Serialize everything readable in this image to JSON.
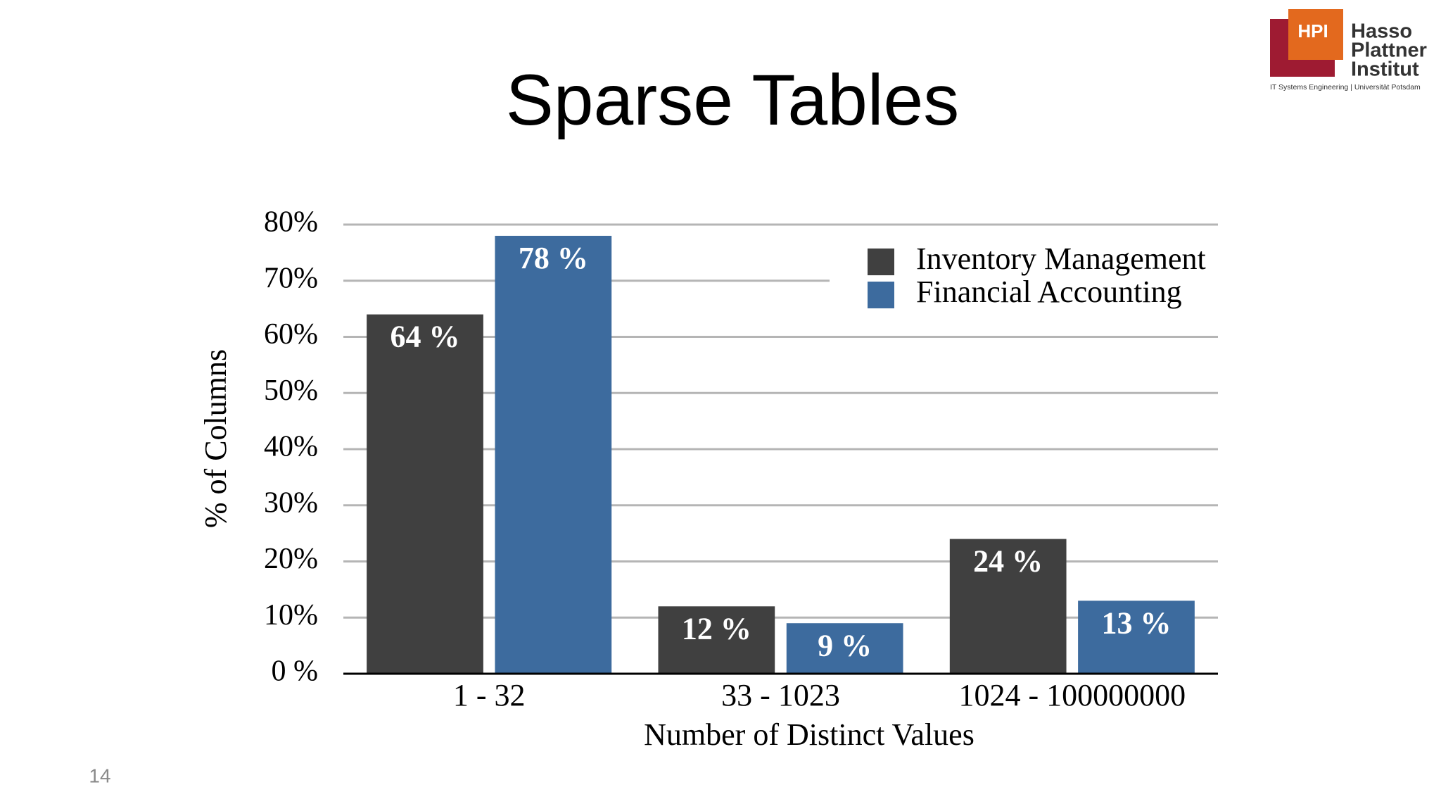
{
  "slide_number": "14",
  "logo": {
    "mark": "HPI",
    "lines": [
      "Hasso",
      "Plattner",
      "Institut"
    ],
    "tagline": "IT Systems Engineering | Universität Potsdam"
  },
  "chart_data": {
    "type": "bar",
    "title": "Sparse Tables",
    "x_label": "Number of Distinct Values",
    "y_label": "% of Columns",
    "categories": [
      "1 - 32",
      "33 - 1023",
      "1024 - 100000000"
    ],
    "series": [
      {
        "name": "Inventory Management",
        "color": "#404040",
        "values": [
          64,
          12,
          24
        ],
        "value_labels": [
          "64 %",
          "12 %",
          "24 %"
        ]
      },
      {
        "name": "Financial Accounting",
        "color": "#3d6b9e",
        "values": [
          78,
          9,
          13
        ],
        "value_labels": [
          "78 %",
          "9 %",
          "13 %"
        ]
      }
    ],
    "ylim": [
      0,
      80
    ],
    "yticks": [
      {
        "value": 0,
        "label": "0 %"
      },
      {
        "value": 10,
        "label": "10%"
      },
      {
        "value": 20,
        "label": "20%"
      },
      {
        "value": 30,
        "label": "30%"
      },
      {
        "value": 40,
        "label": "40%"
      },
      {
        "value": 50,
        "label": "50%"
      },
      {
        "value": 60,
        "label": "60%"
      },
      {
        "value": 70,
        "label": "70%"
      },
      {
        "value": 80,
        "label": "80%"
      }
    ],
    "grid": true,
    "legend": "top-right"
  }
}
